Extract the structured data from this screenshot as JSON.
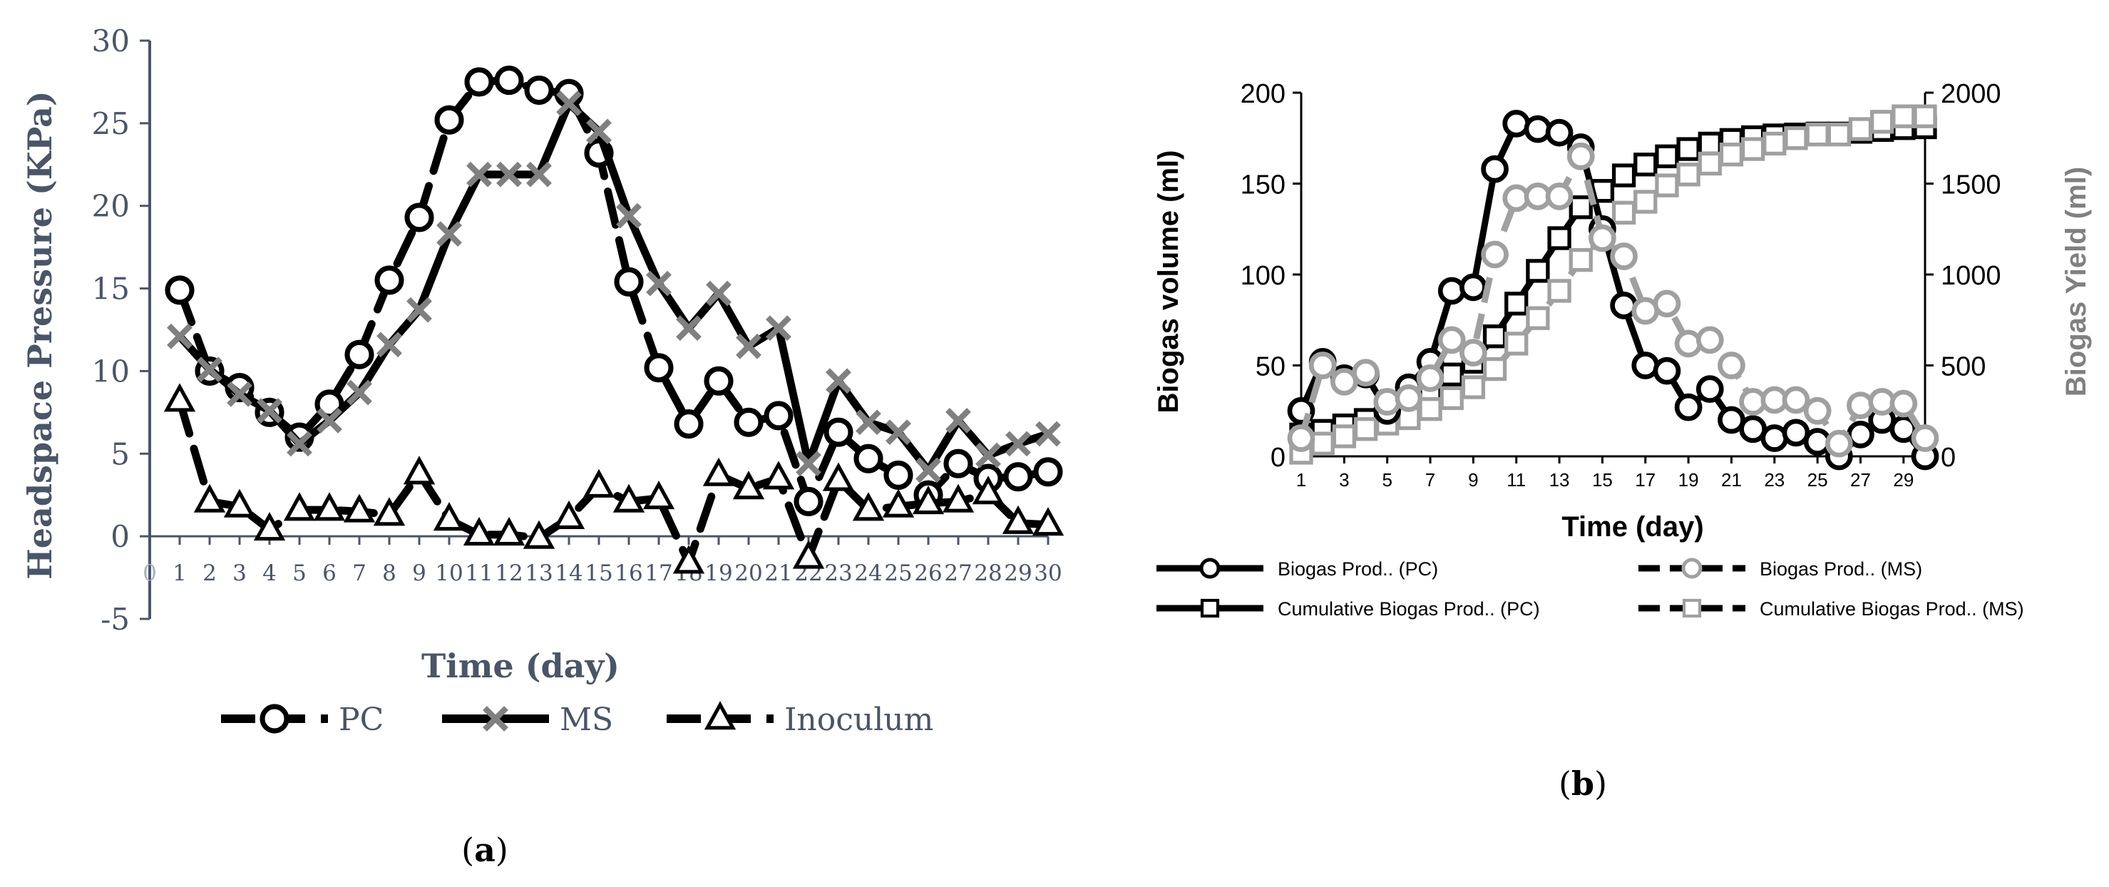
{
  "chart_data": [
    {
      "panel": "a",
      "type": "line",
      "caption": "a",
      "xlabel": "Time (day)",
      "ylabel": "Headspace Pressure (KPa)",
      "xlim": [
        0,
        30
      ],
      "ylim": [
        -5,
        30
      ],
      "yticks": [
        -5,
        0,
        5,
        10,
        15,
        20,
        25,
        30
      ],
      "xticks": [
        0,
        1,
        2,
        3,
        4,
        5,
        6,
        7,
        8,
        9,
        10,
        11,
        12,
        13,
        14,
        15,
        16,
        17,
        18,
        19,
        20,
        21,
        22,
        23,
        24,
        25,
        26,
        27,
        28,
        29,
        30
      ],
      "legend_position": "bottom",
      "colors": {
        "axis": "#4a5568",
        "pc": "#000000",
        "ms": "#808080",
        "inoculum": "#000000"
      },
      "x": [
        1,
        2,
        3,
        4,
        5,
        6,
        7,
        8,
        9,
        10,
        11,
        12,
        13,
        14,
        15,
        16,
        17,
        18,
        19,
        20,
        21,
        22,
        23,
        24,
        25,
        26,
        27,
        28,
        29,
        30
      ],
      "series": [
        {
          "name": "PC",
          "marker": "circle",
          "dash": "dashed",
          "values": [
            14.9,
            10,
            9,
            7.5,
            6,
            8,
            11,
            15.5,
            19.3,
            25.2,
            27.5,
            27.6,
            27,
            26.8,
            23.2,
            15.4,
            10.2,
            6.8,
            9.4,
            6.9,
            7.3,
            2.1,
            6.3,
            4.7,
            3.7,
            2.5,
            4.4,
            3.5,
            3.6,
            3.9
          ]
        },
        {
          "name": "MS",
          "marker": "x",
          "dash": "solid",
          "values": [
            12.1,
            10.1,
            8.6,
            7.6,
            5.6,
            7,
            8.7,
            11.6,
            13.7,
            18.3,
            21.9,
            21.9,
            21.9,
            26.2,
            24.5,
            19.4,
            15.3,
            12.6,
            14.7,
            11.5,
            12.6,
            4.4,
            9.4,
            6.9,
            6.3,
            4,
            7,
            4.9,
            5.6,
            6.2
          ]
        },
        {
          "name": "Inoculum",
          "marker": "triangle",
          "dash": "dashed",
          "values": [
            8.2,
            2.1,
            1.8,
            0.4,
            1.6,
            1.6,
            1.5,
            1.3,
            3.8,
            1,
            0.1,
            0.1,
            -0.1,
            1.1,
            3,
            2.1,
            2.3,
            -1.6,
            3.7,
            2.9,
            3.5,
            -1.3,
            3.4,
            1.6,
            1.8,
            2,
            2.1,
            2.6,
            0.8,
            0.7
          ]
        }
      ]
    },
    {
      "panel": "b",
      "type": "line",
      "caption": "b",
      "xlabel": "Time (day)",
      "ylabel": "Biogas volume (ml)",
      "y2label": "Biogas Yield (ml)",
      "xlim": [
        1,
        30
      ],
      "ylim": [
        0,
        200
      ],
      "y2lim": [
        0,
        2000
      ],
      "xticks": [
        1,
        3,
        5,
        7,
        9,
        11,
        13,
        15,
        17,
        19,
        21,
        23,
        25,
        27,
        29
      ],
      "yticks": [
        0,
        50,
        100,
        150,
        200
      ],
      "y2ticks": [
        0,
        500,
        1000,
        1500,
        2000
      ],
      "legend_position": "bottom",
      "colors": {
        "axis": "#000000",
        "pc": "#000000",
        "ms": "#a0a0a0",
        "label_left": "#000000",
        "label_right": "#808080"
      },
      "x": [
        1,
        2,
        3,
        4,
        5,
        6,
        7,
        8,
        9,
        10,
        11,
        12,
        13,
        14,
        15,
        16,
        17,
        18,
        19,
        20,
        21,
        22,
        23,
        24,
        25,
        26,
        27,
        28,
        29,
        30
      ],
      "series": [
        {
          "name": "Biogas Prod.. (PC)",
          "axis": "left",
          "marker": "circle",
          "dash": "solid",
          "values": [
            25,
            52,
            43,
            45,
            25,
            38,
            52,
            91,
            93,
            158,
            183,
            180,
            178,
            170,
            125,
            83,
            50,
            47,
            27,
            37,
            20,
            15,
            10,
            13,
            8,
            0,
            12,
            20,
            15,
            0
          ]
        },
        {
          "name": "Biogas Prod.. (MS)",
          "axis": "left",
          "marker": "circle",
          "dash": "dashed",
          "values": [
            10,
            50,
            41,
            46,
            30,
            32,
            43,
            64,
            57,
            111,
            142,
            143,
            143,
            165,
            120,
            110,
            80,
            84,
            62,
            64,
            50,
            30,
            31,
            31,
            25,
            7,
            28,
            30,
            29,
            10
          ]
        },
        {
          "name": "Cumulative Biogas Prod.. (PC)",
          "axis": "right",
          "marker": "square",
          "dash": "solid",
          "values": [
            120,
            140,
            170,
            200,
            240,
            290,
            360,
            450,
            520,
            660,
            840,
            1020,
            1200,
            1370,
            1460,
            1545,
            1605,
            1650,
            1690,
            1720,
            1740,
            1755,
            1765,
            1770,
            1775,
            1775,
            1785,
            1795,
            1805,
            1810
          ]
        },
        {
          "name": "Cumulative Biogas Prod.. (MS)",
          "axis": "right",
          "marker": "square",
          "dash": "dashed",
          "values": [
            20,
            70,
            110,
            150,
            180,
            210,
            260,
            320,
            380,
            480,
            620,
            760,
            910,
            1080,
            1200,
            1340,
            1400,
            1490,
            1550,
            1610,
            1660,
            1690,
            1720,
            1750,
            1770,
            1770,
            1800,
            1840,
            1870,
            1870
          ]
        }
      ]
    }
  ]
}
